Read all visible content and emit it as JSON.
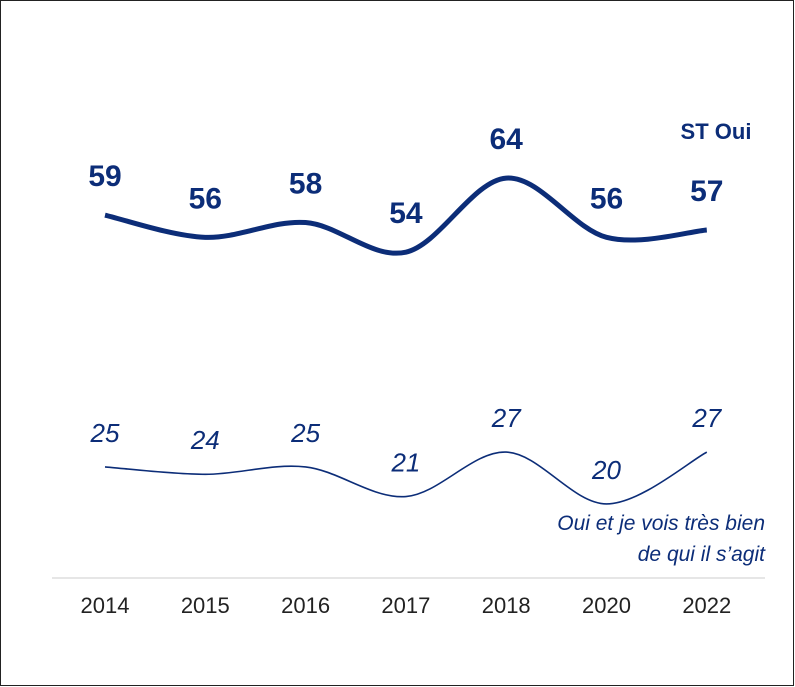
{
  "chart_data": {
    "type": "line",
    "categories": [
      "2014",
      "2015",
      "2016",
      "2017",
      "2018",
      "2020",
      "2022"
    ],
    "series": [
      {
        "name": "ST Oui",
        "color": "#0c2d78",
        "values": [
          59,
          56,
          58,
          54,
          64,
          56,
          57
        ]
      },
      {
        "name": "Oui et je vois très bien de qui il s’agit",
        "color": "#0c2d78",
        "values": [
          25,
          24,
          25,
          21,
          27,
          20,
          27
        ]
      }
    ],
    "ylim": [
      10,
      84
    ]
  }
}
